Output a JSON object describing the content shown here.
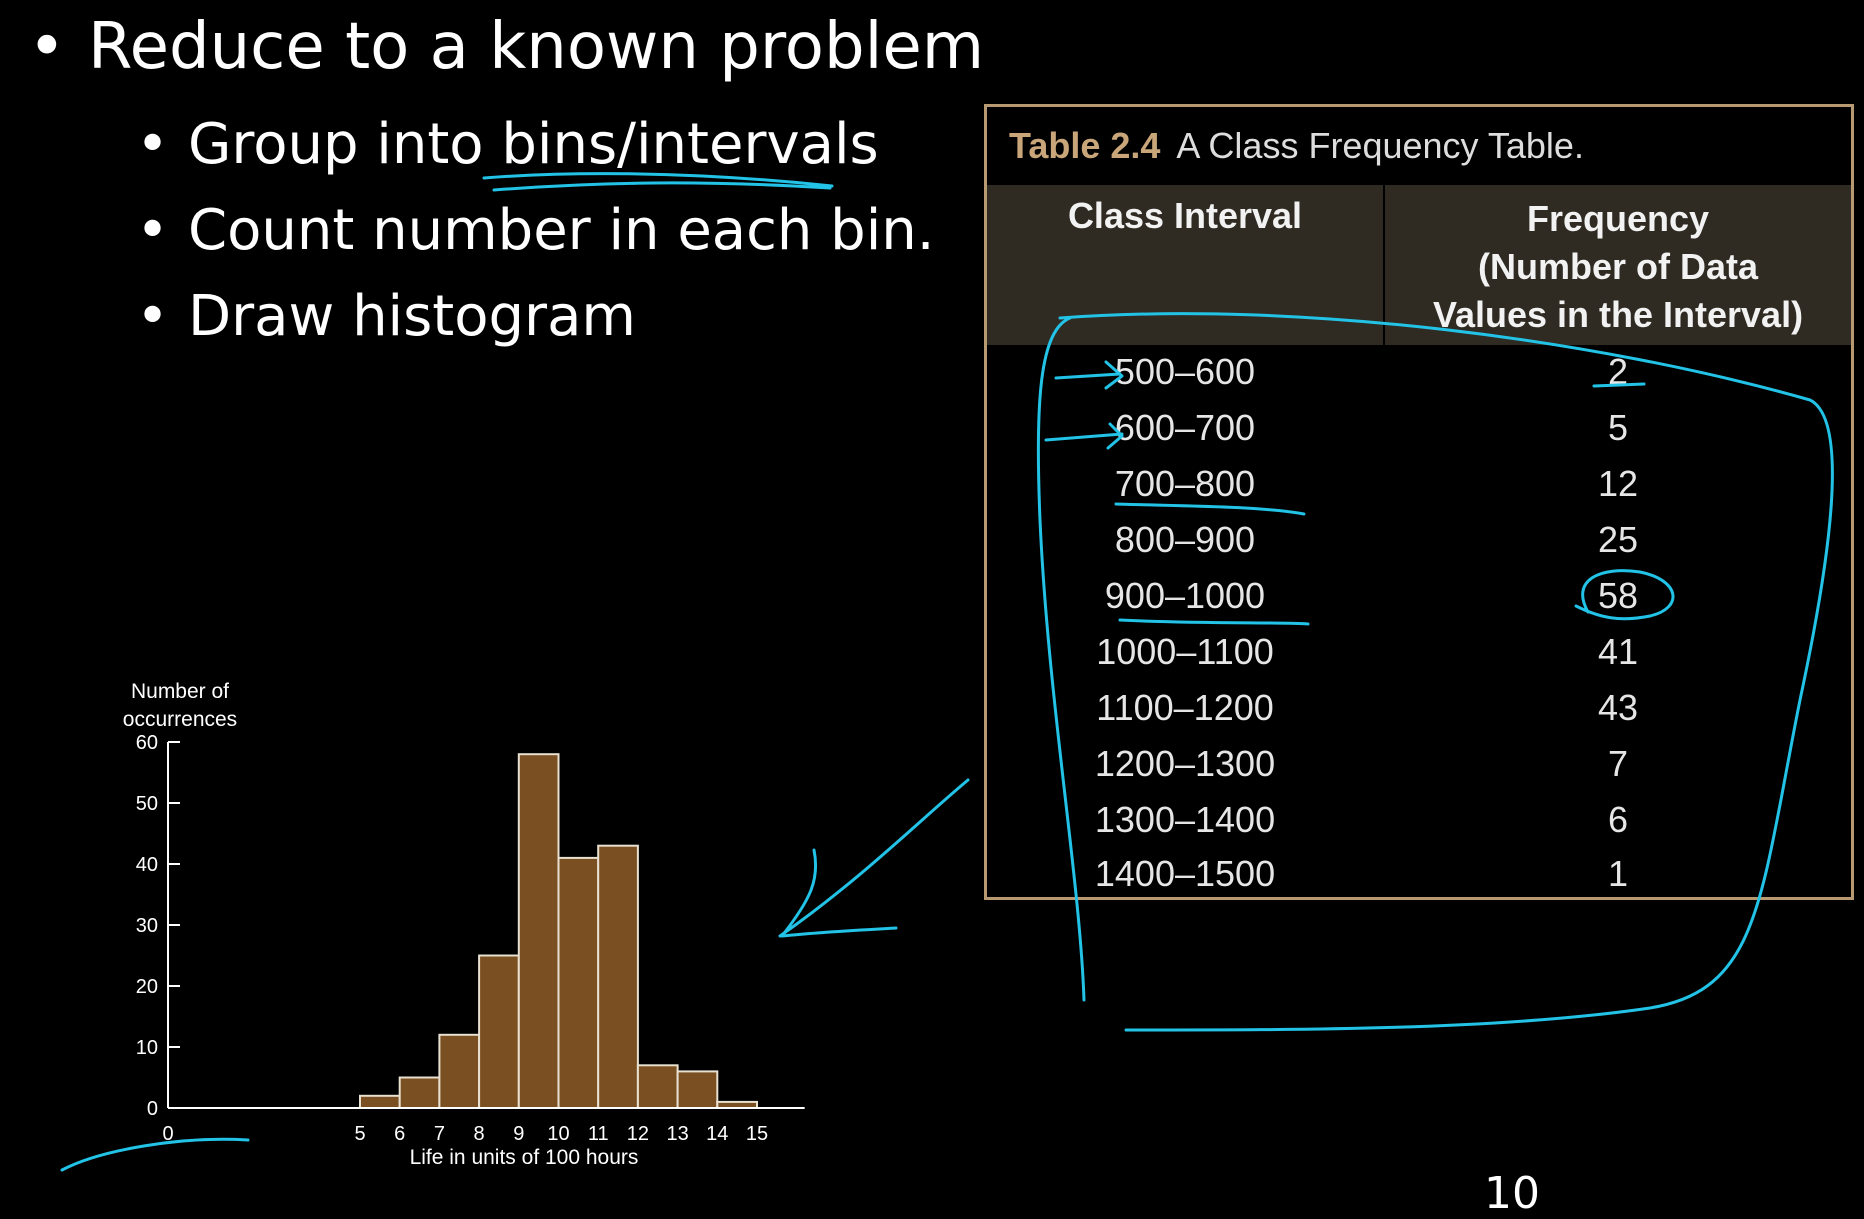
{
  "slide": {
    "bullet_main": "Reduce to a known problem",
    "sub_bullets": [
      "Group into bins/intervals",
      "Count number in each bin.",
      "Draw histogram"
    ],
    "page_number": "10"
  },
  "table": {
    "caption_label": "Table 2.4",
    "caption_text": "A Class Frequency Table.",
    "col1_header": "Class Interval",
    "col2_header": [
      "Frequency",
      "(Number of Data",
      "Values in the Interval)"
    ],
    "rows": [
      {
        "interval": "500–600",
        "frequency": "2"
      },
      {
        "interval": "600–700",
        "frequency": "5"
      },
      {
        "interval": "700–800",
        "frequency": "12"
      },
      {
        "interval": "800–900",
        "frequency": "25"
      },
      {
        "interval": "900–1000",
        "frequency": "58"
      },
      {
        "interval": "1000–1100",
        "frequency": "41"
      },
      {
        "interval": "1100–1200",
        "frequency": "43"
      },
      {
        "interval": "1200–1300",
        "frequency": "7"
      },
      {
        "interval": "1300–1400",
        "frequency": "6"
      },
      {
        "interval": "1400–1500",
        "frequency": "1"
      }
    ]
  },
  "chart_data": {
    "type": "bar",
    "ylabel_lines": [
      "Number of",
      "occurrences"
    ],
    "xlabel": "Life in units of 100 hours",
    "y_ticks": [
      0,
      10,
      20,
      30,
      40,
      50,
      60
    ],
    "x_ticks": [
      0,
      5,
      6,
      7,
      8,
      9,
      10,
      11,
      12,
      13,
      14,
      15
    ],
    "ylim": [
      0,
      60
    ],
    "xlim": [
      0,
      16
    ],
    "bins": [
      {
        "start": 5,
        "end": 6,
        "value": 2
      },
      {
        "start": 6,
        "end": 7,
        "value": 5
      },
      {
        "start": 7,
        "end": 8,
        "value": 12
      },
      {
        "start": 8,
        "end": 9,
        "value": 25
      },
      {
        "start": 9,
        "end": 10,
        "value": 58
      },
      {
        "start": 10,
        "end": 11,
        "value": 41
      },
      {
        "start": 11,
        "end": 12,
        "value": 43
      },
      {
        "start": 12,
        "end": 13,
        "value": 7
      },
      {
        "start": 13,
        "end": 14,
        "value": 6
      },
      {
        "start": 14,
        "end": 15,
        "value": 1
      }
    ],
    "bar_color": "#7a4f22",
    "grid": false
  },
  "colors": {
    "ink": "#22c3e6",
    "table_border": "#b89a72",
    "header_bg": "#2f2a22"
  }
}
